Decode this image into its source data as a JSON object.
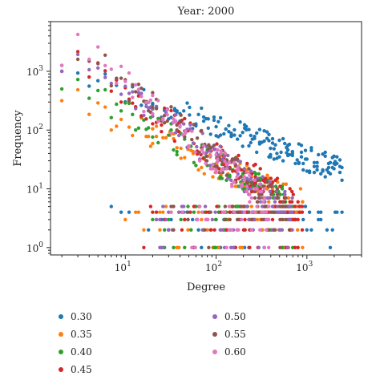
{
  "chart_data": {
    "type": "scatter",
    "title": "Year: 2000",
    "xlabel": "Degree",
    "ylabel": "Frequency",
    "xscale": "log",
    "yscale": "log",
    "xlim": [
      1.5,
      4000
    ],
    "ylim": [
      0.75,
      7000
    ],
    "x_ticks": [
      {
        "value": 10,
        "label": "10",
        "exp": "1"
      },
      {
        "value": 100,
        "label": "10",
        "exp": "2"
      },
      {
        "value": 1000,
        "label": "10",
        "exp": "3"
      }
    ],
    "y_ticks": [
      {
        "value": 1,
        "label": "10",
        "exp": "0"
      },
      {
        "value": 10,
        "label": "10",
        "exp": "1"
      },
      {
        "value": 100,
        "label": "10",
        "exp": "2"
      },
      {
        "value": 1000,
        "label": "10",
        "exp": "3"
      }
    ],
    "grid": false,
    "legend_placement": "bottom",
    "series": [
      {
        "name": "0.30",
        "color": "#1f77b4",
        "model": {
          "k0": 2,
          "a": 3.0,
          "b": -0.55,
          "kmax": 2500,
          "tail_start": 5,
          "spread": 0.22
        }
      },
      {
        "name": "0.35",
        "color": "#ff7f0e",
        "model": {
          "k0": 2,
          "a": 2.6,
          "b": -0.7,
          "kmax": 900,
          "tail_start": 8,
          "spread": 0.25
        }
      },
      {
        "name": "0.40",
        "color": "#2ca02c",
        "model": {
          "k0": 2,
          "a": 2.9,
          "b": -0.85,
          "kmax": 700,
          "tail_start": 12,
          "spread": 0.25
        }
      },
      {
        "name": "0.45",
        "color": "#d62728",
        "model": {
          "k0": 2,
          "a": 3.3,
          "b": -1.0,
          "kmax": 900,
          "tail_start": 15,
          "spread": 0.25
        }
      },
      {
        "name": "0.50",
        "color": "#9467bd",
        "model": {
          "k0": 2,
          "a": 3.4,
          "b": -1.1,
          "kmax": 700,
          "tail_start": 20,
          "spread": 0.25
        }
      },
      {
        "name": "0.55",
        "color": "#8c564b",
        "model": {
          "k0": 2,
          "a": 3.6,
          "b": -1.2,
          "kmax": 600,
          "tail_start": 25,
          "spread": 0.25
        }
      },
      {
        "name": "0.60",
        "color": "#e377c2",
        "model": {
          "k0": 2,
          "a": 3.7,
          "b": -1.3,
          "kmax": 400,
          "tail_start": 30,
          "spread": 0.25
        }
      }
    ]
  }
}
